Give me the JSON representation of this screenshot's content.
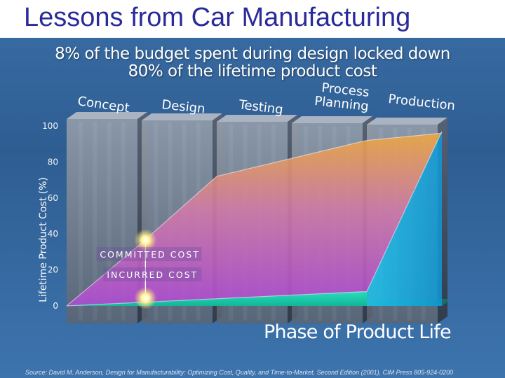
{
  "slide": {
    "title": "Lessons from Car Manufacturing",
    "headline_line1": "8% of the budget spent during design locked down",
    "headline_line2": "80% of the lifetime product cost",
    "source": "Source: David M. Anderson, Design for Manufacturability: Optimizing Cost, Quality, and Time-to-Market, Second Edition (2001), CIM Press 805-924-0200"
  },
  "colors": {
    "committed_top": "#f0a93a",
    "committed_bottom": "#b84fd2",
    "incurred": "#1fd9b0",
    "production_face": "#16b7e6",
    "column_face": "#7c8390",
    "column_side": "#4a5260"
  },
  "chart_data": {
    "type": "area",
    "title": "",
    "xlabel": "Phase of Product Life",
    "ylabel": "Lifetime Product Cost (%)",
    "ylim": [
      0,
      100
    ],
    "yticks": [
      0,
      20,
      40,
      60,
      80,
      100
    ],
    "categories": [
      "Concept",
      "Design",
      "Testing",
      "Process Planning",
      "Production"
    ],
    "x": [
      0,
      1,
      2,
      3,
      4,
      5
    ],
    "series": [
      {
        "name": "COMMITTED COST",
        "values": [
          0,
          35,
          72,
          82,
          92,
          96
        ]
      },
      {
        "name": "INCURRED COST",
        "values": [
          0,
          2,
          4,
          6,
          8,
          97
        ]
      }
    ],
    "grid": false,
    "legend": "inline"
  }
}
